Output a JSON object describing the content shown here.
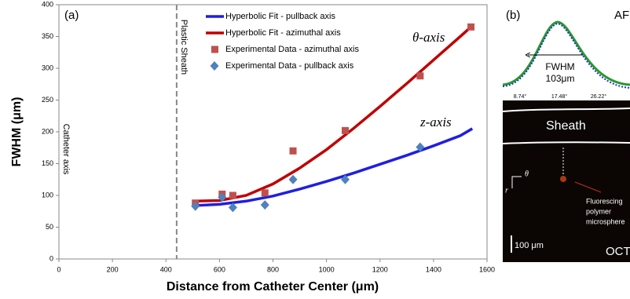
{
  "chart_data": {
    "type": "scatter",
    "xlabel": "Distance from Catheter Center (μm)",
    "ylabel": "FWHM (μm)",
    "xlim": [
      0,
      1600
    ],
    "xticks": [
      0,
      200,
      400,
      600,
      800,
      1000,
      1200,
      1400,
      1600
    ],
    "ylim": [
      0,
      400
    ],
    "yticks": [
      0,
      50,
      100,
      150,
      200,
      250,
      300,
      350,
      400
    ],
    "grid": false,
    "vline": {
      "x": 440,
      "label": "Plastic Sheath"
    },
    "axis_note": "Catheter axis",
    "annotations": [
      "(a)",
      "θ-axis",
      "z-axis"
    ],
    "series": [
      {
        "name": "Hyperbolic Fit  - pullback axis",
        "style": "line",
        "color": "#1f1fe0",
        "x": [
          510,
          600,
          700,
          800,
          900,
          1000,
          1100,
          1200,
          1300,
          1400,
          1500,
          1545
        ],
        "values": [
          84,
          86,
          91,
          99,
          110,
          122,
          135,
          149,
          163,
          178,
          194,
          205
        ]
      },
      {
        "name": "Hyperbolic Fit  - azimuthal axis",
        "style": "line",
        "color": "#c00000",
        "x": [
          510,
          600,
          700,
          800,
          900,
          1000,
          1100,
          1200,
          1300,
          1400,
          1500,
          1540
        ],
        "values": [
          91,
          92,
          100,
          118,
          143,
          172,
          205,
          240,
          276,
          313,
          350,
          365
        ]
      },
      {
        "name": "Experimental Data - azimuthal axis",
        "style": "square",
        "color": "#c0504d",
        "x": [
          510,
          610,
          650,
          770,
          875,
          1070,
          1350,
          1540
        ],
        "values": [
          88,
          102,
          100,
          104,
          170,
          202,
          288,
          365
        ]
      },
      {
        "name": "Experimental Data - pullback axis",
        "style": "diamond",
        "color": "#4f81bd",
        "x": [
          510,
          610,
          650,
          770,
          875,
          1070,
          1350
        ],
        "values": [
          83,
          97,
          81,
          85,
          125,
          125,
          176
        ]
      }
    ]
  },
  "panel_b": {
    "label": "(b)",
    "corner": "AF",
    "fwhm_title": "FWHM",
    "fwhm_value": "103μm",
    "angles": [
      "8.74°",
      "17.48°",
      "26.22°"
    ],
    "sheath": "Sheath",
    "theta": "θ",
    "r": "r",
    "target": [
      "Fluorescing",
      "polymer",
      "microsphere"
    ],
    "scale": "100 μm",
    "modality": "OCT"
  }
}
